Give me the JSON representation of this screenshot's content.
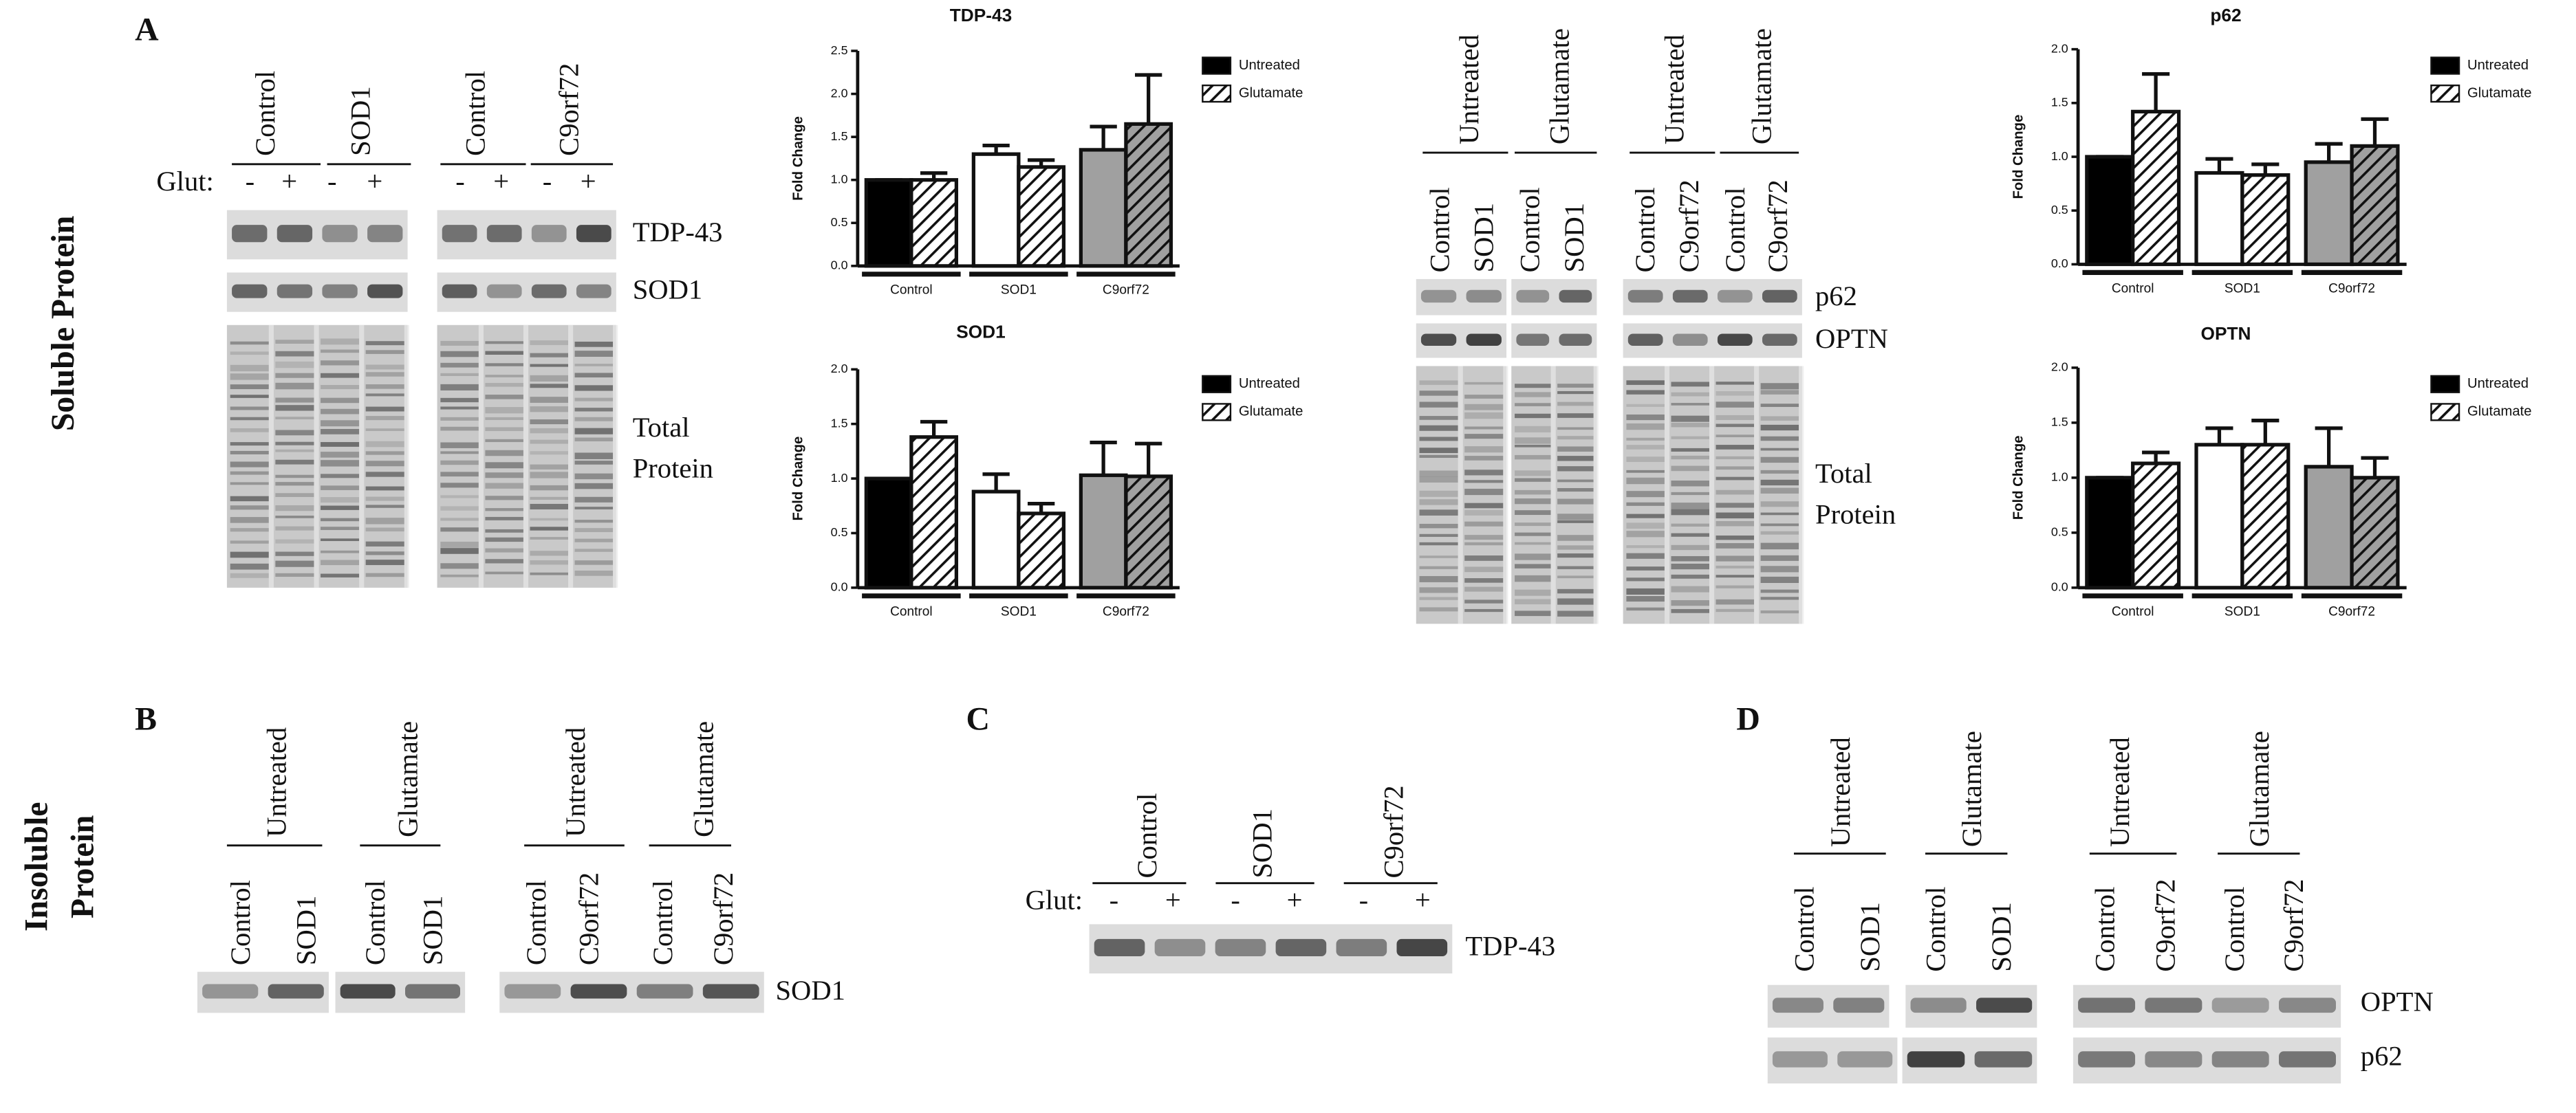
{
  "panel_labels": [
    "A",
    "B",
    "C",
    "D"
  ],
  "row_labels": {
    "soluble": "Soluble Protein",
    "insoluble": [
      "Insoluble",
      "Protein"
    ]
  },
  "panel_a_left": {
    "header": [
      "Control",
      "SOD1",
      "Control",
      "C9orf72"
    ],
    "glut_label": "Glut:",
    "signs": [
      "-",
      "+",
      "-",
      "+",
      "-",
      "+",
      "-",
      "+"
    ],
    "bands": [
      "TDP-43",
      "SOD1"
    ],
    "total": [
      "Total",
      "Protein"
    ]
  },
  "panel_a_right": {
    "treatment": [
      "Untreated",
      "Glutamate",
      "Untreated",
      "Glutamate"
    ],
    "lanes": [
      "Control",
      "SOD1",
      "Control",
      "SOD1",
      "Control",
      "C9orf72",
      "Control",
      "C9orf72"
    ],
    "bands": [
      "p62",
      "OPTN"
    ],
    "total": [
      "Total",
      "Protein"
    ]
  },
  "panel_b": {
    "treatment": [
      "Untreated",
      "Glutamate",
      "Untreated",
      "Glutamate"
    ],
    "lanes": [
      "Control",
      "SOD1",
      "Control",
      "SOD1",
      "Control",
      "C9orf72",
      "Control",
      "C9orf72"
    ],
    "bands": [
      "SOD1"
    ]
  },
  "panel_c": {
    "header": [
      "Control",
      "SOD1",
      "C9orf72"
    ],
    "glut_label": "Glut:",
    "signs": [
      "-",
      "+",
      "-",
      "+",
      "-",
      "+"
    ],
    "bands": [
      "TDP-43"
    ]
  },
  "panel_d": {
    "treatment": [
      "Untreated",
      "Glutamate",
      "Untreated",
      "Glutamate"
    ],
    "lanes": [
      "Control",
      "SOD1",
      "Control",
      "SOD1",
      "Control",
      "C9orf72",
      "Control",
      "C9orf72"
    ],
    "bands": [
      "OPTN",
      "p62"
    ]
  },
  "chart_data": [
    {
      "type": "bar",
      "title": "TDP-43",
      "ylabel": "Fold Change",
      "categories": [
        "Control",
        "SOD1",
        "C9orf72"
      ],
      "ylim": [
        0,
        2.5
      ],
      "yticks": [
        {
          "value": 0,
          "label": "0.0"
        },
        {
          "value": 0.5,
          "label": "0.5"
        },
        {
          "value": 1,
          "label": "1.0"
        },
        {
          "value": 1.5,
          "label": "1.5"
        },
        {
          "value": 2,
          "label": "2.0"
        },
        {
          "value": 2.5,
          "label": "2.5"
        }
      ],
      "series": [
        {
          "name": "Untreated",
          "color": "#000000",
          "bar_colors": [
            "#000000",
            "#ffffff",
            "#a0a0a0"
          ],
          "values": [
            1.0,
            1.3,
            1.35
          ],
          "errors": [
            0,
            0.1,
            0.27
          ]
        },
        {
          "name": "Glutamate",
          "color": "#ffffff",
          "hatch": true,
          "bar_colors": [
            "#ffffff",
            "#ffffff",
            "#a0a0a0"
          ],
          "values": [
            1.0,
            1.15,
            1.65
          ],
          "errors": [
            0.08,
            0.08,
            0.57
          ]
        }
      ]
    },
    {
      "type": "bar",
      "title": "SOD1",
      "ylabel": "Fold Change",
      "categories": [
        "Control",
        "SOD1",
        "C9orf72"
      ],
      "ylim": [
        0,
        2
      ],
      "yticks": [
        {
          "value": 0,
          "label": "0.0"
        },
        {
          "value": 0.5,
          "label": "0.5"
        },
        {
          "value": 1,
          "label": "1.0"
        },
        {
          "value": 1.5,
          "label": "1.5"
        },
        {
          "value": 2,
          "label": "2.0"
        }
      ],
      "series": [
        {
          "name": "Untreated",
          "color": "#000000",
          "bar_colors": [
            "#000000",
            "#ffffff",
            "#a0a0a0"
          ],
          "values": [
            1.0,
            0.88,
            1.03
          ],
          "errors": [
            0,
            0.16,
            0.3
          ]
        },
        {
          "name": "Glutamate",
          "color": "#ffffff",
          "hatch": true,
          "bar_colors": [
            "#ffffff",
            "#ffffff",
            "#a0a0a0"
          ],
          "values": [
            1.38,
            0.68,
            1.02
          ],
          "errors": [
            0.14,
            0.09,
            0.3
          ]
        }
      ]
    },
    {
      "type": "bar",
      "title": "p62",
      "ylabel": "Fold Change",
      "categories": [
        "Control",
        "SOD1",
        "C9orf72"
      ],
      "ylim": [
        0,
        2
      ],
      "yticks": [
        {
          "value": 0,
          "label": "0.0"
        },
        {
          "value": 0.5,
          "label": "0.5"
        },
        {
          "value": 1,
          "label": "1.0"
        },
        {
          "value": 1.5,
          "label": "1.5"
        },
        {
          "value": 2,
          "label": "2.0"
        }
      ],
      "series": [
        {
          "name": "Untreated",
          "color": "#000000",
          "bar_colors": [
            "#000000",
            "#ffffff",
            "#a0a0a0"
          ],
          "values": [
            1.0,
            0.85,
            0.95
          ],
          "errors": [
            0,
            0.13,
            0.17
          ]
        },
        {
          "name": "Glutamate",
          "color": "#ffffff",
          "hatch": true,
          "bar_colors": [
            "#ffffff",
            "#ffffff",
            "#a0a0a0"
          ],
          "values": [
            1.42,
            0.83,
            1.1
          ],
          "errors": [
            0.35,
            0.1,
            0.25
          ]
        }
      ]
    },
    {
      "type": "bar",
      "title": "OPTN",
      "ylabel": "Fold Change",
      "categories": [
        "Control",
        "SOD1",
        "C9orf72"
      ],
      "ylim": [
        0,
        2
      ],
      "yticks": [
        {
          "value": 0,
          "label": "0.0"
        },
        {
          "value": 0.5,
          "label": "0.5"
        },
        {
          "value": 1,
          "label": "1.0"
        },
        {
          "value": 1.5,
          "label": "1.5"
        },
        {
          "value": 2,
          "label": "2.0"
        }
      ],
      "series": [
        {
          "name": "Untreated",
          "color": "#000000",
          "bar_colors": [
            "#000000",
            "#ffffff",
            "#a0a0a0"
          ],
          "values": [
            1.0,
            1.3,
            1.1
          ],
          "errors": [
            0,
            0.15,
            0.35
          ]
        },
        {
          "name": "Glutamate",
          "color": "#ffffff",
          "hatch": true,
          "bar_colors": [
            "#ffffff",
            "#ffffff",
            "#a0a0a0"
          ],
          "values": [
            1.13,
            1.3,
            1.0
          ],
          "errors": [
            0.1,
            0.22,
            0.18
          ]
        }
      ]
    }
  ]
}
